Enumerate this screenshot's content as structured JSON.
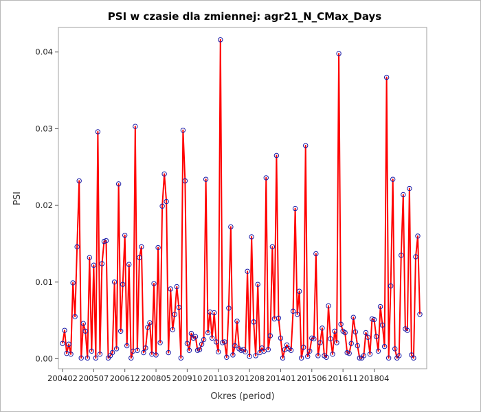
{
  "chart_data": {
    "type": "line",
    "title": "PSI w czasie dla zmiennej: agr21_N_CMax_Days",
    "xlabel": "Okres (period)",
    "ylabel": "PSI",
    "ylim": [
      -0.0013,
      0.0432
    ],
    "yticks": [
      "0.00",
      "0.01",
      "0.02",
      "0.03",
      "0.04"
    ],
    "xticks": [
      "200402",
      "200507",
      "200612",
      "200805",
      "200910",
      "201103",
      "201208",
      "201401",
      "201506",
      "201611",
      "201804"
    ],
    "line_color": "#ff0000",
    "marker_color": "#1a1aa6",
    "marker": "circle",
    "grid": false,
    "series": [
      {
        "values": [
          0.002,
          0.0037,
          0.0007,
          0.0019,
          0.0006,
          0.0099,
          0.0055,
          0.0146,
          0.0232,
          0.0001,
          0.0046,
          0.0036,
          0.0001,
          0.0132,
          0.001,
          0.0122,
          0.0001,
          0.0296,
          0.0006,
          0.0124,
          0.0153,
          0.0154,
          0.0001,
          0.0004,
          0.0008,
          0.01,
          0.0013,
          0.0228,
          0.0036,
          0.0097,
          0.0161,
          0.0017,
          0.0123,
          0.0001,
          0.001,
          0.0303,
          0.0011,
          0.0132,
          0.0146,
          0.0008,
          0.0014,
          0.0041,
          0.0047,
          0.0006,
          0.0098,
          0.0005,
          0.0145,
          0.0021,
          0.0199,
          0.0241,
          0.0205,
          0.0008,
          0.0091,
          0.0038,
          0.0058,
          0.0094,
          0.0067,
          0.0001,
          0.0298,
          0.0232,
          0.002,
          0.0011,
          0.0033,
          0.0027,
          0.0029,
          0.0011,
          0.0012,
          0.0019,
          0.0025,
          0.0234,
          0.0034,
          0.0061,
          0.0027,
          0.006,
          0.0022,
          0.0009,
          0.0416,
          0.0021,
          0.0022,
          0.0002,
          0.0066,
          0.0172,
          0.0005,
          0.0017,
          0.0049,
          0.0013,
          0.0011,
          0.0012,
          0.0009,
          0.0114,
          0.0003,
          0.0159,
          0.0048,
          0.0004,
          0.0097,
          0.0008,
          0.0014,
          0.001,
          0.0236,
          0.0012,
          0.003,
          0.0146,
          0.0052,
          0.0265,
          0.0053,
          0.0027,
          0.0001,
          0.0012,
          0.0018,
          0.0013,
          0.0011,
          0.0062,
          0.0196,
          0.0058,
          0.0088,
          0.0001,
          0.0015,
          0.0278,
          0.0003,
          0.001,
          0.0027,
          0.0026,
          0.0137,
          0.0004,
          0.0021,
          0.004,
          0.0004,
          0.0002,
          0.0069,
          0.0026,
          0.0006,
          0.0036,
          0.0021,
          0.0398,
          0.0045,
          0.0036,
          0.0034,
          0.0008,
          0.0007,
          0.002,
          0.0054,
          0.0035,
          0.0017,
          0.0001,
          0.0001,
          0.0004,
          0.0034,
          0.0028,
          0.0006,
          0.0052,
          0.0051,
          0.0029,
          0.001,
          0.0068,
          0.0044,
          0.0016,
          0.0367,
          0.0001,
          0.0095,
          0.0234,
          0.0013,
          0.0001,
          0.0004,
          0.0135,
          0.0214,
          0.0039,
          0.0037,
          0.0222,
          0.0005,
          0.0001,
          0.0133,
          0.016,
          0.0058
        ]
      }
    ]
  }
}
